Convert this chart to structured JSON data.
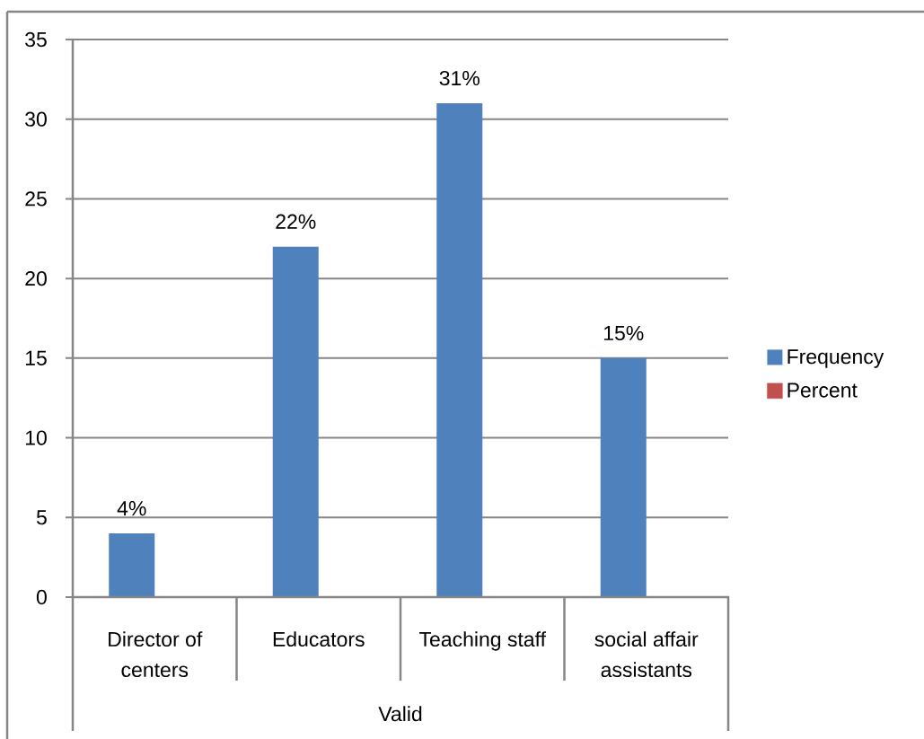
{
  "chart_data": {
    "type": "bar",
    "xlabel": "Valid",
    "categories": [
      "Director of centers",
      "Educators",
      "Teaching staff",
      "social affair assistants"
    ],
    "series": [
      {
        "name": "Frequency",
        "color": "#4f81bd",
        "values": [
          4,
          22,
          31,
          15
        ],
        "value_labels": [
          "4%",
          "22%",
          "31%",
          "15%"
        ]
      },
      {
        "name": "Percent",
        "color": "#c0504d",
        "values": [
          null,
          null,
          null,
          null
        ]
      }
    ],
    "ylim": [
      0,
      35
    ],
    "yticks": [
      0,
      5,
      10,
      15,
      20,
      25,
      30,
      35
    ],
    "grid": "y",
    "legend": "right"
  }
}
